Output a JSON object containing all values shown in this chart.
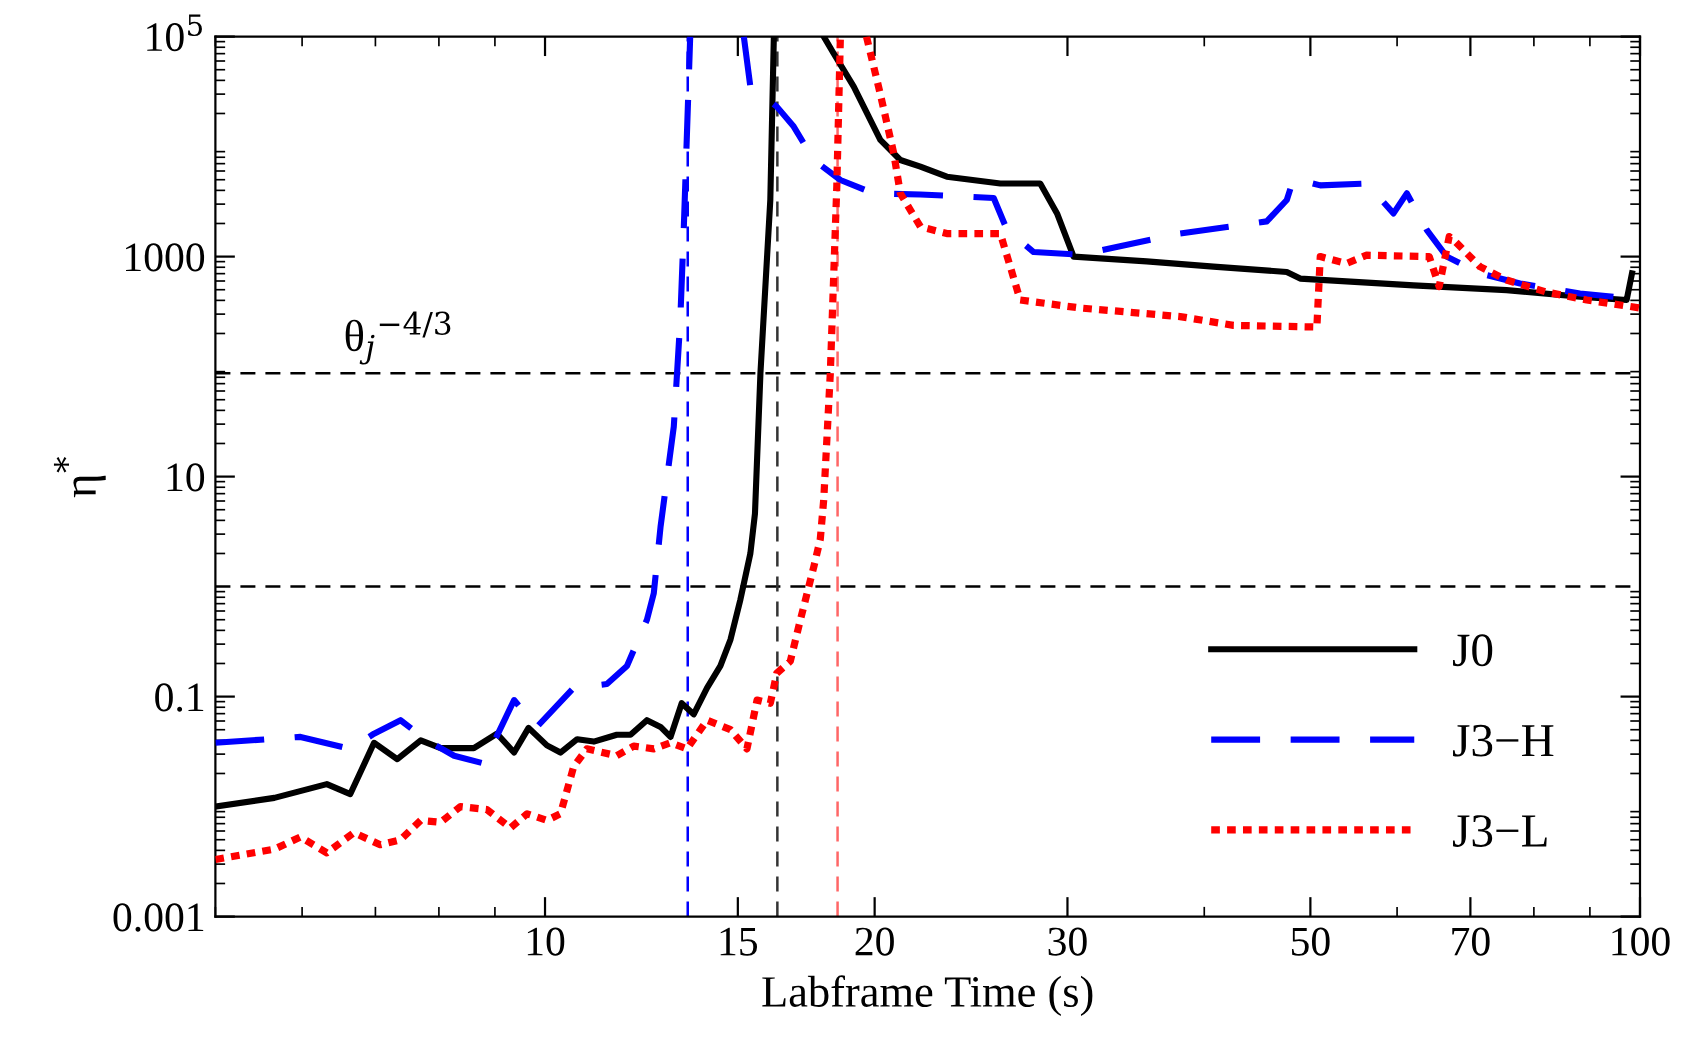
{
  "chart_data": {
    "type": "line",
    "xlabel": "Labframe Time (s)",
    "ylabel": "η$^{*}$",
    "log": "xy",
    "xlim": [
      5,
      100
    ],
    "ylim": [
      0.001,
      100000
    ],
    "xticks": [
      10,
      15,
      20,
      30,
      50,
      70,
      100
    ],
    "yticks": [
      0.001,
      0.1,
      10,
      1000,
      {
        "value": 100000,
        "label": "10$^{5}$"
      }
    ],
    "grid": false,
    "legend": "bottom right",
    "series": [
      {
        "name": "J0",
        "color": "#000000",
        "line_style": "solid",
        "x": [
          5.0,
          5.66,
          6.32,
          6.64,
          6.98,
          7.33,
          7.7,
          8.03,
          8.61,
          9.04,
          9.37,
          9.66,
          10.04,
          10.33,
          10.7,
          11.08,
          11.63,
          11.97,
          12.39,
          12.75,
          13.02,
          13.33,
          13.67,
          14.06,
          14.46,
          14.77,
          15.08,
          15.4,
          15.55,
          15.73,
          16.06,
          16.18,
          17.0,
          17.97,
          18.35,
          19.14,
          20.24,
          21.11,
          22.02,
          23.28,
          26.05,
          28.33,
          29.35,
          30.39,
          35.44,
          40.78,
          47.58,
          48.94,
          62.11,
          75.53,
          88.15,
          97.23,
          98.33
        ],
        "values": [
          0.01,
          0.012,
          0.016,
          0.013,
          0.038,
          0.027,
          0.04,
          0.034,
          0.034,
          0.046,
          0.031,
          0.052,
          0.036,
          0.031,
          0.041,
          0.039,
          0.045,
          0.045,
          0.061,
          0.053,
          0.043,
          0.087,
          0.069,
          0.12,
          0.19,
          0.33,
          0.76,
          2.0,
          4.6,
          87,
          3270,
          100000,
          null,
          100000,
          70300,
          35100,
          11500,
          7550,
          6580,
          5330,
          4620,
          4620,
          2470,
          1000,
          905,
          811,
          725,
          631,
          547,
          496,
          432,
          403,
          703
        ]
      },
      {
        "name": "J3−H",
        "color": "#0000ff",
        "line_style": "dashed",
        "x": [
          5.0,
          5.98,
          6.64,
          6.98,
          7.38,
          7.8,
          8.26,
          8.79,
          9.37,
          9.83,
          10.62,
          11.39,
          11.88,
          12.39,
          12.57,
          12.75,
          13.11,
          13.29,
          13.39,
          13.57,
          14.5,
          15.19,
          15.4,
          16.28,
          16.87,
          17.6,
          18.61,
          19.96,
          22.02,
          25.69,
          26.42,
          27.94,
          30.82,
          38.02,
          45.62,
          47.58,
          48.27,
          51.05,
          56.28,
          59.55,
          61.24,
          63.86,
          66.6,
          71.42,
          77.71,
          88.15,
          94.56
        ],
        "values": [
          0.038,
          0.043,
          0.0335,
          0.046,
          0.061,
          0.04,
          0.029,
          0.0247,
          0.093,
          0.053,
          0.12,
          0.13,
          0.19,
          0.5,
          0.87,
          3.5,
          28.5,
          265,
          1870,
          100000,
          null,
          100000,
          35100,
          23100,
          15200,
          7550,
          4970,
          3760,
          3670,
          3410,
          1750,
          1100,
          1040,
          1620,
          2090,
          3270,
          5120,
          4440,
          4620,
          2470,
          3760,
          1750,
          1000,
          703,
          570,
          462,
          432
        ]
      },
      {
        "name": "J3−L",
        "color": "#ff0000",
        "line_style": "dotted",
        "x": [
          5.0,
          5.66,
          5.98,
          6.32,
          6.69,
          7.07,
          7.38,
          7.7,
          8.03,
          8.37,
          8.85,
          9.3,
          9.63,
          10.04,
          10.33,
          10.62,
          10.92,
          11.63,
          12.05,
          12.57,
          13.02,
          13.48,
          14.06,
          14.77,
          15.29,
          15.62,
          16.06,
          16.28,
          16.75,
          17.11,
          17.6,
          17.84,
          17.97,
          18.22,
          18.47,
          18.61,
          19.2,
          19.66,
          20.24,
          20.82,
          21.11,
          22.02,
          23.28,
          26.05,
          26.6,
          27.16,
          30.82,
          38.02,
          42.54,
          50.69,
          51.05,
          53.96,
          56.28,
          64.2,
          65.55,
          66.95,
          67.57,
          71.42,
          75.53,
          82.15,
          89.4,
          100
        ],
        "values": [
          0.0033,
          0.0041,
          0.0053,
          0.0038,
          0.0058,
          0.0045,
          0.005,
          0.0075,
          0.0072,
          0.01,
          0.0094,
          0.0064,
          0.0086,
          0.0075,
          0.0086,
          0.023,
          0.0335,
          0.029,
          0.0355,
          0.0335,
          0.038,
          0.0335,
          0.061,
          0.05,
          0.0335,
          0.093,
          0.087,
          0.163,
          0.21,
          0.5,
          1.52,
          2.7,
          6.2,
          87,
          4330,
          100000,
          null,
          100000,
          30000,
          8670,
          3760,
          1870,
          1620,
          1620,
          811,
          403,
          341,
          285,
          237,
          229,
          1000,
          867,
          1030,
          1000,
          533,
          1520,
          1420,
          811,
          612,
          476,
          403,
          341
        ]
      }
    ],
    "ref_lines": [
      {
        "axis": "y",
        "value": 87,
        "label": "θ$_{j}$$^{−4/3}$",
        "color": "#000000",
        "line_style": "dashed"
      },
      {
        "axis": "y",
        "value": 1,
        "color": "#000000",
        "line_style": "dashed"
      },
      {
        "axis": "x",
        "value": 13.5,
        "color": "#0000ff",
        "line_style": "dashed"
      },
      {
        "axis": "x",
        "value": 16.3,
        "color": "#333333",
        "line_style": "dashed"
      },
      {
        "axis": "x",
        "value": 18.5,
        "color": "#ff6666",
        "line_style": "dashed"
      }
    ]
  }
}
